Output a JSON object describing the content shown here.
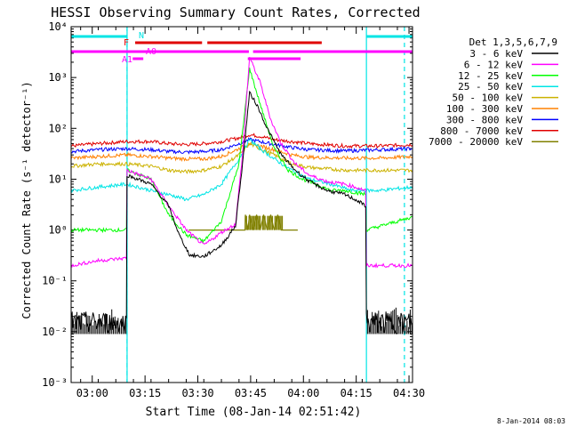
{
  "chart_data": {
    "type": "line",
    "title": "HESSI Observing Summary Count Rates, Corrected",
    "xlabel": "Start Time (08-Jan-14 02:51:42)",
    "ylabel": "Corrected Count Rate (s⁻¹ detector⁻¹)",
    "yscale": "log",
    "ylim": [
      0.001,
      10000
    ],
    "xlim_minutes": [
      2.3,
      99.3
    ],
    "x_unit": "minutes since 02:51:42",
    "x_tick_labels": [
      "03:00",
      "03:15",
      "03:30",
      "03:45",
      "04:00",
      "04:15",
      "04:30"
    ],
    "x_ticks": [
      8.3,
      23.3,
      38.3,
      53.3,
      68.3,
      83.3,
      98.3
    ],
    "y_tick_labels": [
      "10⁻³",
      "10⁻²",
      "10⁻¹",
      "10⁰",
      "10¹",
      "10²",
      "10³",
      "10⁴"
    ],
    "y_ticks": [
      0.001,
      0.01,
      0.1,
      1,
      10,
      100,
      1000,
      10000
    ],
    "legend_title": "Det 1,3,5,6,7,9",
    "legend_position": "right",
    "series": [
      {
        "name": "3 - 6 keV",
        "color": "#000000",
        "x": [
          2.3,
          10,
          18,
          18.2,
          25,
          30,
          33,
          36,
          40,
          45,
          49,
          51,
          53,
          55,
          58,
          62,
          66,
          70,
          75,
          80,
          83,
          86,
          86.2,
          99.3
        ],
        "y": [
          0.015,
          0.015,
          0.015,
          12,
          8,
          3,
          0.8,
          0.32,
          0.3,
          0.5,
          1.2,
          20,
          500,
          300,
          100,
          30,
          15,
          9,
          6,
          5,
          4,
          3,
          0.015,
          0.015
        ]
      },
      {
        "name": "6 - 12 keV",
        "color": "#ff00ff",
        "x": [
          2.3,
          10,
          18,
          18.2,
          25,
          30,
          35,
          40,
          45,
          49,
          51,
          53,
          56,
          59,
          62,
          66,
          70,
          75,
          80,
          83,
          86,
          86.2,
          99.3
        ],
        "y": [
          0.2,
          0.25,
          0.28,
          15,
          10,
          3,
          1,
          0.5,
          0.9,
          1.3,
          30,
          2500,
          800,
          150,
          50,
          20,
          12,
          9,
          8,
          7,
          6,
          0.2,
          0.2
        ]
      },
      {
        "name": "12 - 25 keV",
        "color": "#00ff00",
        "x": [
          2.3,
          10,
          18,
          18.2,
          25,
          30,
          35,
          40,
          45,
          50,
          53,
          56,
          60,
          64,
          68,
          72,
          76,
          80,
          86,
          86.2,
          99.3
        ],
        "y": [
          1,
          1,
          1,
          15,
          10,
          2,
          0.8,
          0.6,
          1.5,
          20,
          1500,
          300,
          40,
          15,
          10,
          8,
          6,
          6,
          5,
          1,
          1.8
        ]
      },
      {
        "name": "25 - 50 keV",
        "color": "#00e5e5",
        "x": [
          2.3,
          10,
          18,
          25,
          30,
          35,
          40,
          45,
          50,
          53,
          56,
          60,
          65,
          70,
          76,
          82,
          90,
          99.3
        ],
        "y": [
          6,
          7,
          8,
          6,
          5,
          4,
          5,
          8,
          25,
          60,
          40,
          25,
          15,
          10,
          8,
          6,
          6,
          7
        ]
      },
      {
        "name": "50 - 100 keV",
        "color": "#ccb200",
        "x": [
          2.3,
          10,
          18,
          25,
          30,
          35,
          40,
          45,
          50,
          53,
          56,
          60,
          65,
          70,
          80,
          90,
          99.3
        ],
        "y": [
          18,
          20,
          20,
          18,
          15,
          14,
          15,
          18,
          30,
          50,
          40,
          30,
          20,
          17,
          15,
          15,
          15
        ]
      },
      {
        "name": "100 - 300 keV",
        "color": "#ff8000",
        "x": [
          2.3,
          10,
          18,
          25,
          30,
          35,
          40,
          45,
          50,
          53,
          56,
          60,
          65,
          70,
          80,
          90,
          99.3
        ],
        "y": [
          26,
          28,
          30,
          28,
          26,
          25,
          25,
          28,
          40,
          50,
          45,
          38,
          30,
          27,
          26,
          26,
          28
        ]
      },
      {
        "name": "300 - 800 keV",
        "color": "#0000ff",
        "x": [
          2.3,
          10,
          18,
          25,
          30,
          35,
          40,
          45,
          50,
          53,
          56,
          60,
          65,
          70,
          80,
          90,
          99.3
        ],
        "y": [
          35,
          38,
          40,
          38,
          35,
          34,
          35,
          38,
          50,
          60,
          55,
          48,
          42,
          38,
          36,
          38,
          40
        ]
      },
      {
        "name": "800 - 7000 keV",
        "color": "#e00000",
        "x": [
          2.3,
          10,
          18,
          25,
          30,
          35,
          40,
          45,
          50,
          53,
          56,
          60,
          65,
          70,
          80,
          90,
          99.3
        ],
        "y": [
          45,
          50,
          55,
          55,
          50,
          48,
          50,
          55,
          65,
          75,
          70,
          60,
          55,
          50,
          45,
          45,
          48
        ]
      },
      {
        "name": "7000 - 20000 keV",
        "color": "#808000",
        "x": [
          35.7,
          51.7,
          51.8,
          52.5,
          53,
          54,
          55,
          56,
          57,
          58,
          59,
          60,
          61,
          62,
          64,
          66.7
        ],
        "y": [
          1,
          1,
          2,
          1,
          2,
          1,
          2,
          1,
          2,
          1,
          2,
          1,
          2,
          1,
          1,
          1
        ]
      }
    ],
    "flag_bars": [
      {
        "label": "N",
        "color": "#00e5e5",
        "row": 1,
        "segments": [
          [
            2.3,
            18.2
          ],
          [
            86.2,
            99.3
          ]
        ]
      },
      {
        "label": "F",
        "color": "#e00000",
        "row": 2,
        "segments": [
          [
            20.5,
            39.5
          ],
          [
            41.0,
            73.5
          ]
        ]
      },
      {
        "label": "A0",
        "color": "#ff00ff",
        "row": 3,
        "segments": [
          [
            2.3,
            52.8
          ],
          [
            54.0,
            99.3
          ]
        ]
      },
      {
        "label": "A1",
        "color": "#ff00ff",
        "row": 4,
        "segments": [
          [
            19.8,
            22.8
          ],
          [
            52.5,
            67.5
          ]
        ]
      }
    ],
    "vertical_lines": [
      {
        "style": "solid",
        "color": "#00e5e5",
        "x": [
          18.2,
          86.2
        ]
      },
      {
        "style": "dashed",
        "color": "#00e5e5",
        "x": [
          18.2,
          97.0
        ]
      }
    ]
  },
  "timestamp": "8-Jan-2014 08:03"
}
